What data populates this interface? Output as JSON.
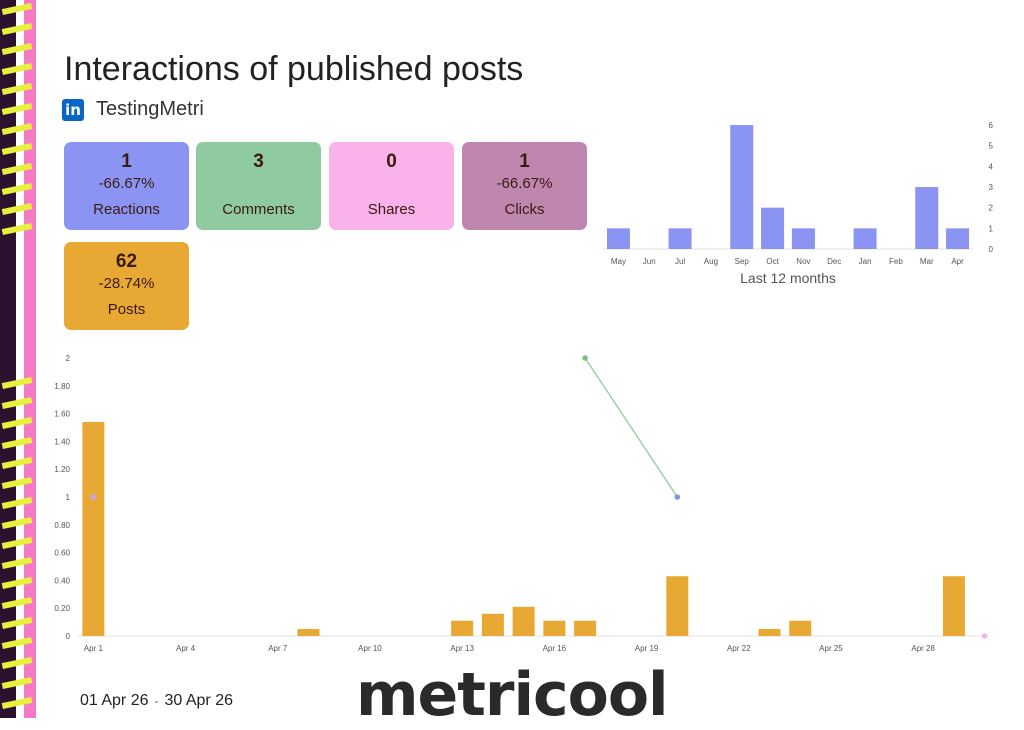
{
  "page": {
    "title": "Interactions of published posts",
    "account": {
      "network_icon": "linkedin-icon",
      "icon_glyph": "in",
      "name": "TestingMetri"
    },
    "date_range": {
      "start": "01 Apr 26",
      "separator": "-",
      "end": "30 Apr 26"
    },
    "logo_text": "metricool"
  },
  "cards": [
    {
      "id": "reactions",
      "value": "1",
      "change": "-66.67%",
      "label": "Reactions",
      "color": "#8b94f2"
    },
    {
      "id": "comments",
      "value": "3",
      "change": "",
      "label": "Comments",
      "color": "#8fcaa0"
    },
    {
      "id": "shares",
      "value": "0",
      "change": "",
      "label": "Shares",
      "color": "#f9b2ea"
    },
    {
      "id": "clicks",
      "value": "1",
      "change": "-66.67%",
      "label": "Clicks",
      "color": "#bf86ae"
    },
    {
      "id": "posts",
      "value": "62",
      "change": "-28.74%",
      "label": "Posts",
      "color": "#e8a834"
    }
  ],
  "chart_data": [
    {
      "type": "bar",
      "xlabel": "Last 12 months",
      "categories": [
        "May",
        "Jun",
        "Jul",
        "Aug",
        "Sep",
        "Oct",
        "Nov",
        "Dec",
        "Jan",
        "Feb",
        "Mar",
        "Apr"
      ],
      "values": [
        1,
        0,
        1,
        0,
        6,
        2,
        1,
        0,
        1,
        0,
        3,
        1
      ],
      "yticks": [
        "0",
        "1",
        "2",
        "3",
        "4",
        "5",
        "6"
      ],
      "ylim": [
        0,
        6
      ],
      "bar_color": "#8b94f2",
      "grid": false
    },
    {
      "type": "bar",
      "x_tick_labels": [
        "Apr 1",
        "Apr 4",
        "Apr 7",
        "Apr 10",
        "Apr 13",
        "Apr 16",
        "Apr 19",
        "Apr 22",
        "Apr 25",
        "Apr 28"
      ],
      "x_tick_days": [
        1,
        4,
        7,
        10,
        13,
        16,
        19,
        22,
        25,
        28
      ],
      "yticks": [
        "0",
        "0.20",
        "0.40",
        "0.60",
        "0.80",
        "1",
        "1.20",
        "1.40",
        "1.60",
        "1.80",
        "2"
      ],
      "ylim": [
        0,
        2
      ],
      "days_in_period": 30,
      "posts_bars": [
        {
          "day": 1,
          "value": 1.54
        },
        {
          "day": 8,
          "value": 0.05
        },
        {
          "day": 13,
          "value": 0.11
        },
        {
          "day": 14,
          "value": 0.16
        },
        {
          "day": 15,
          "value": 0.21
        },
        {
          "day": 16,
          "value": 0.11
        },
        {
          "day": 17,
          "value": 0.11
        },
        {
          "day": 20,
          "value": 0.43
        },
        {
          "day": 23,
          "value": 0.05
        },
        {
          "day": 24,
          "value": 0.11
        },
        {
          "day": 29,
          "value": 0.43
        }
      ],
      "posts_color": "#e8a834",
      "line_series": [
        {
          "color": "#8fcaa0",
          "points": [
            {
              "day": 17,
              "value": 2
            },
            {
              "day": 20,
              "value": 1
            }
          ]
        }
      ],
      "markers": [
        {
          "day": 1,
          "value": 1,
          "color": "#c5a8e8"
        },
        {
          "day": 17,
          "value": 2,
          "color": "#7cbf8a"
        },
        {
          "day": 20,
          "value": 1,
          "color": "#7e95e0"
        },
        {
          "day": 30,
          "value": 0,
          "color": "#f9b2ea"
        }
      ],
      "grid": false
    }
  ]
}
